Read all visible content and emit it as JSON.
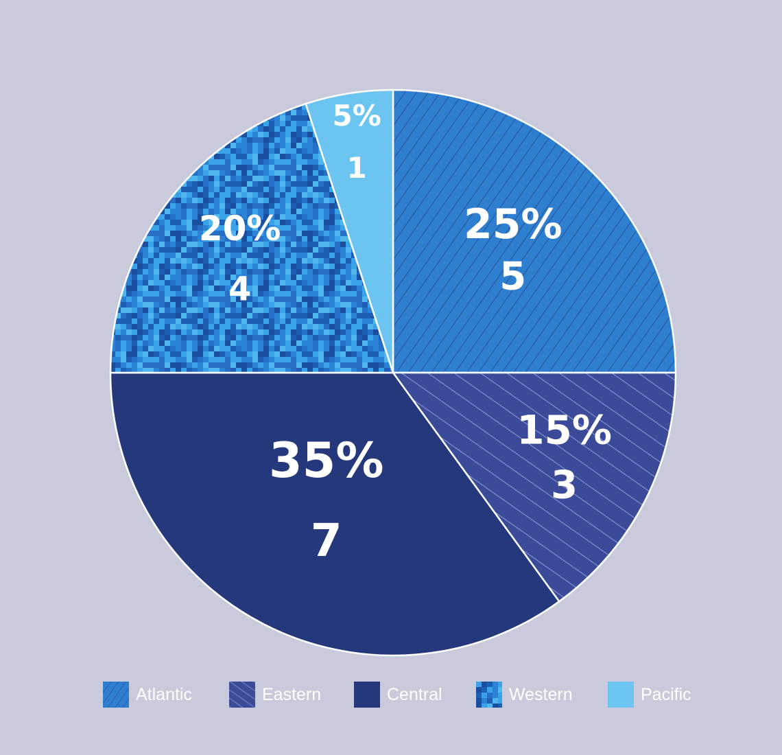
{
  "chart_data": {
    "type": "pie",
    "start_angle_deg": 0,
    "direction": "clockwise",
    "slices": [
      {
        "name": "Atlantic",
        "value": 5,
        "percent_label": "25%",
        "count_label": "5",
        "color": "#2e7fd0",
        "pattern": "diagonal-dark"
      },
      {
        "name": "Eastern",
        "value": 3,
        "percent_label": "15%",
        "count_label": "3",
        "color": "#3b4b9a",
        "pattern": "diagonal-light"
      },
      {
        "name": "Central",
        "value": 7,
        "percent_label": "35%",
        "count_label": "7",
        "color": "#26387c",
        "pattern": "solid"
      },
      {
        "name": "Western",
        "value": 4,
        "percent_label": "20%",
        "count_label": "4",
        "color": "#1f74c9",
        "pattern": "pixel-camo"
      },
      {
        "name": "Pacific",
        "value": 1,
        "percent_label": "5%",
        "count_label": "1",
        "color": "#6cc5f1",
        "pattern": "solid"
      }
    ],
    "legend": {
      "placement": "bottom",
      "entries": [
        "Atlantic",
        "Eastern",
        "Central",
        "Western",
        "Pacific"
      ]
    }
  }
}
